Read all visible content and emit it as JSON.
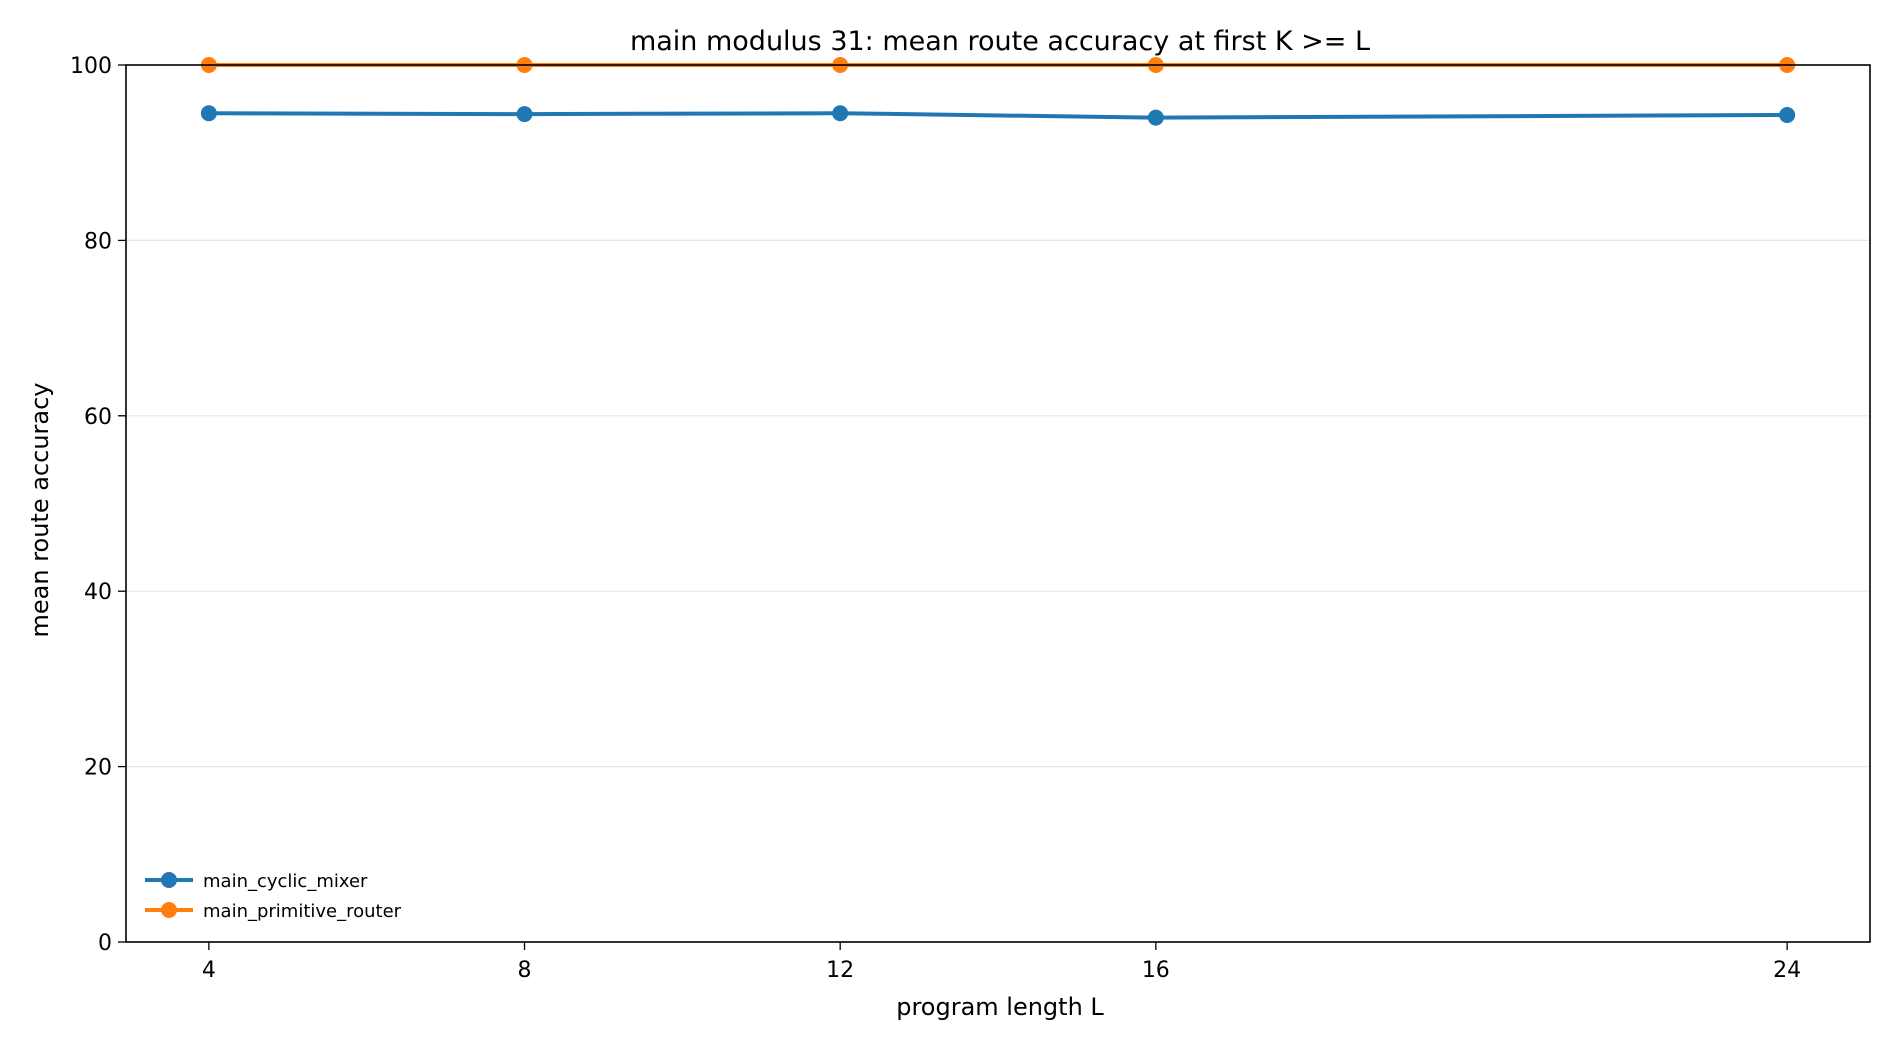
{
  "chart_data": {
    "type": "line",
    "title": "main modulus 31: mean route accuracy at first K >= L",
    "xlabel": "program length L",
    "ylabel": "mean route accuracy",
    "x": [
      4,
      8,
      12,
      16,
      24
    ],
    "xticks": [
      4,
      8,
      12,
      16,
      24
    ],
    "yticks": [
      0,
      20,
      40,
      60,
      80,
      100
    ],
    "xlim": [
      2.95,
      25.05
    ],
    "ylim": [
      0,
      100
    ],
    "grid": "horizontal",
    "legend_position": "lower-left",
    "series": [
      {
        "name": "main_cyclic_mixer",
        "color": "#1f77b4",
        "values": [
          94.5,
          94.4,
          94.5,
          94.0,
          94.3
        ]
      },
      {
        "name": "main_primitive_router",
        "color": "#ff7f0e",
        "values": [
          100,
          100,
          100,
          100,
          100
        ]
      }
    ]
  }
}
